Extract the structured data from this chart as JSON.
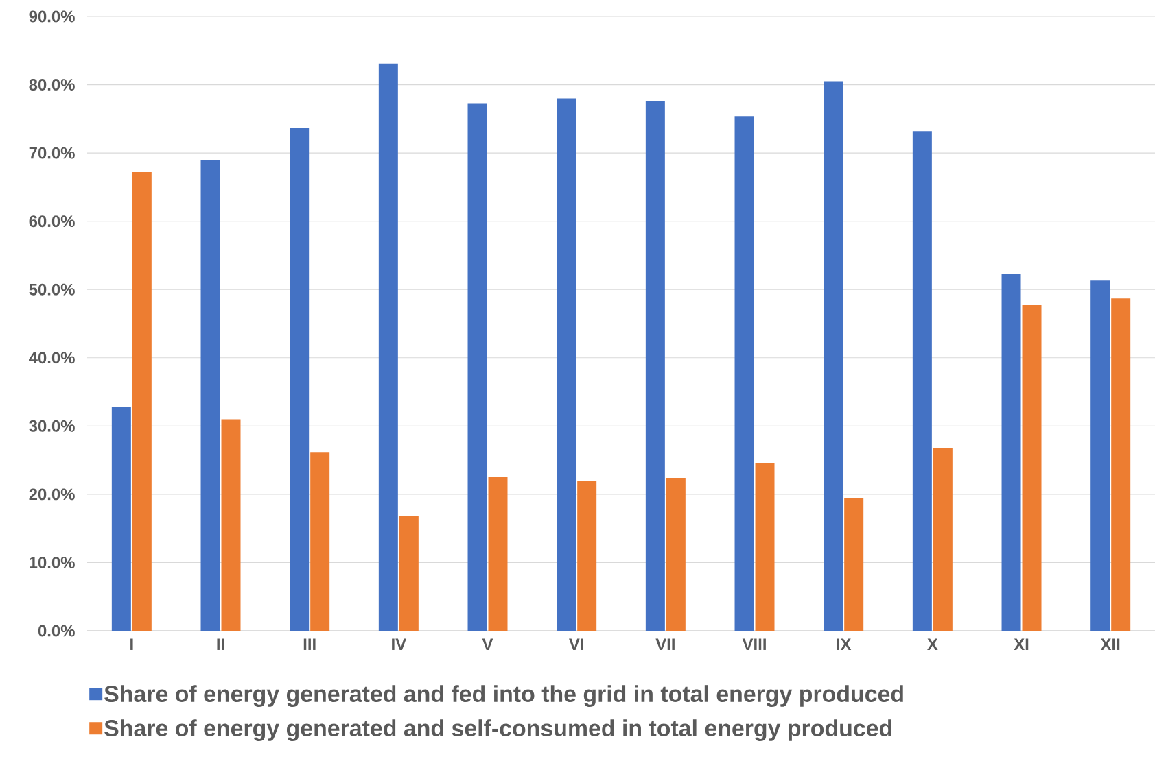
{
  "chart_data": {
    "type": "bar",
    "categories": [
      "I",
      "II",
      "III",
      "IV",
      "V",
      "VI",
      "VII",
      "VIII",
      "IX",
      "X",
      "XI",
      "XII"
    ],
    "series": [
      {
        "name": "Share of energy generated and fed into the grid in total energy produced",
        "color": "#4472c4",
        "values": [
          32.8,
          69.0,
          73.7,
          83.1,
          77.3,
          78.0,
          77.6,
          75.4,
          80.5,
          73.2,
          52.3,
          51.3
        ]
      },
      {
        "name": "Share of energy generated and self-consumed in total energy produced",
        "color": "#ed7d31",
        "values": [
          67.2,
          31.0,
          26.2,
          16.8,
          22.6,
          22.0,
          22.4,
          24.5,
          19.4,
          26.8,
          47.7,
          48.7
        ]
      }
    ],
    "ylim": [
      0,
      90
    ],
    "yticks": [
      {
        "value": 0,
        "label": "0.0%"
      },
      {
        "value": 10,
        "label": "10.0%"
      },
      {
        "value": 20,
        "label": "20.0%"
      },
      {
        "value": 30,
        "label": "30.0%"
      },
      {
        "value": 40,
        "label": "40.0%"
      },
      {
        "value": 50,
        "label": "50.0%"
      },
      {
        "value": 60,
        "label": "60.0%"
      },
      {
        "value": 70,
        "label": "70.0%"
      },
      {
        "value": 80,
        "label": "80.0%"
      },
      {
        "value": 90,
        "label": "90.0%"
      }
    ],
    "grid": "y",
    "legend": "bottom"
  }
}
